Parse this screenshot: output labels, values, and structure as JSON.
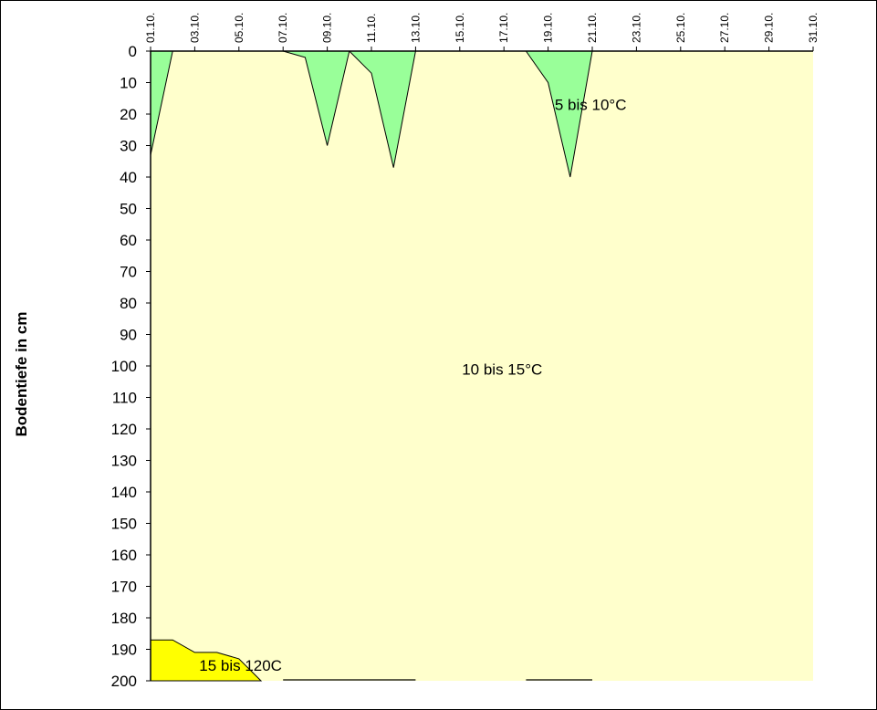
{
  "chart_data": {
    "type": "area",
    "ylabel": "Bodentiefe in cm",
    "xlabel": "",
    "title": "",
    "y_axis": {
      "min": 0,
      "max": 200,
      "step": 10,
      "inverted": true
    },
    "x_axis": {
      "min": 1,
      "max": 31,
      "unit": "day of October"
    },
    "x_ticks": [
      "01.10.",
      "03.10.",
      "05.10.",
      "07.10.",
      "09.10.",
      "11.10.",
      "13.10.",
      "15.10.",
      "17.10.",
      "19.10.",
      "21.10.",
      "23.10.",
      "25.10.",
      "27.10.",
      "29.10.",
      "31.10."
    ],
    "y_ticks": [
      "0",
      "10",
      "20",
      "30",
      "40",
      "50",
      "60",
      "70",
      "80",
      "90",
      "100",
      "110",
      "120",
      "130",
      "140",
      "150",
      "160",
      "170",
      "180",
      "190",
      "200"
    ],
    "background_color": "#ffffcc",
    "regions": [
      {
        "name": "5 bis 10°C",
        "color": "#99ff99",
        "polygons": [
          [
            [
              1,
              0
            ],
            [
              1,
              33
            ],
            [
              2,
              0
            ]
          ],
          [
            [
              7,
              0
            ],
            [
              8,
              2
            ],
            [
              9,
              30
            ],
            [
              10,
              0
            ]
          ],
          [
            [
              10,
              0
            ],
            [
              11,
              7
            ],
            [
              12,
              37
            ],
            [
              13,
              0
            ]
          ],
          [
            [
              18,
              0
            ],
            [
              19,
              10
            ],
            [
              20,
              40
            ],
            [
              21,
              0
            ]
          ]
        ]
      },
      {
        "name": "10 bis 15°C",
        "color": "#ffffcc",
        "polygons": []
      },
      {
        "name": "15 bis 120C",
        "color": "#ffff00",
        "polygons": [
          [
            [
              1,
              187
            ],
            [
              2,
              187
            ],
            [
              3,
              191
            ],
            [
              4,
              191
            ],
            [
              5,
              193
            ],
            [
              6,
              200
            ],
            [
              1,
              200
            ]
          ]
        ]
      }
    ],
    "annotations": [
      {
        "text": "5 bis 10°C",
        "x": 19.3,
        "y": 17
      },
      {
        "text": "10 bis 15°C",
        "x": 15.1,
        "y": 101
      },
      {
        "text": "15 bis 120C",
        "x": 3.2,
        "y": 195
      }
    ],
    "legend": "none",
    "grid": false
  }
}
